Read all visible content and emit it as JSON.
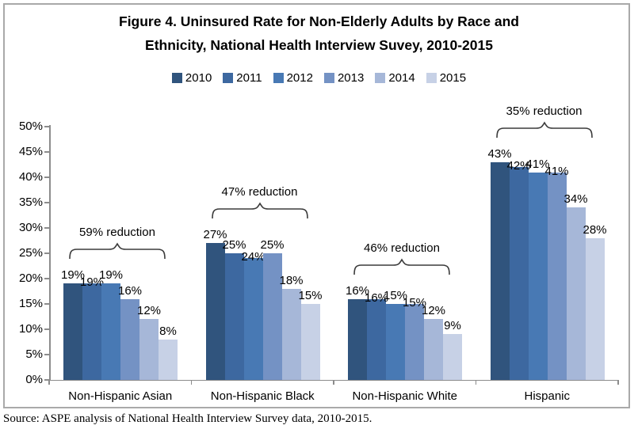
{
  "title": {
    "line1": "Figure 4. Uninsured Rate for Non-Elderly Adults by Race and",
    "line2": "Ethnicity, National Health Interview Suvey, 2010-2015"
  },
  "colors": {
    "series": [
      "#30547D",
      "#3D68A0",
      "#4879B4",
      "#7492C4",
      "#A6B7D8",
      "#C7D1E6"
    ],
    "axis": "#8C8C8C",
    "border": "#A9A9A9",
    "text": "#000000"
  },
  "chart_data": {
    "type": "bar",
    "title": "Figure 4. Uninsured Rate for Non-Elderly Adults by Race and Ethnicity, National Health Interview Suvey, 2010-2015",
    "categories": [
      "Non-Hispanic Asian",
      "Non-Hispanic Black",
      "Non-Hispanic White",
      "Hispanic"
    ],
    "series": [
      {
        "name": "2010",
        "values": [
          19,
          27,
          16,
          43
        ]
      },
      {
        "name": "2011",
        "values": [
          19,
          25,
          16,
          42
        ]
      },
      {
        "name": "2012",
        "values": [
          19,
          24,
          15,
          41
        ]
      },
      {
        "name": "2013",
        "values": [
          16,
          25,
          15,
          41
        ]
      },
      {
        "name": "2014",
        "values": [
          12,
          18,
          12,
          34
        ]
      },
      {
        "name": "2015",
        "values": [
          8,
          15,
          9,
          28
        ]
      }
    ],
    "data_label_suffix": "%",
    "annotations": [
      {
        "category": "Non-Hispanic Asian",
        "label": "59% reduction"
      },
      {
        "category": "Non-Hispanic Black",
        "label": "47% reduction"
      },
      {
        "category": "Non-Hispanic White",
        "label": "46% reduction"
      },
      {
        "category": "Hispanic",
        "label": "35% reduction"
      }
    ],
    "ylim": [
      0,
      50
    ],
    "ytick_step": 5,
    "ytick_suffix": "%",
    "grid": false,
    "legend_position": "top",
    "legend_entries": [
      "2010",
      "2011",
      "2012",
      "2013",
      "2014",
      "2015"
    ]
  },
  "source": "Source: ASPE analysis of National Health Interview Survey data, 2010-2015."
}
